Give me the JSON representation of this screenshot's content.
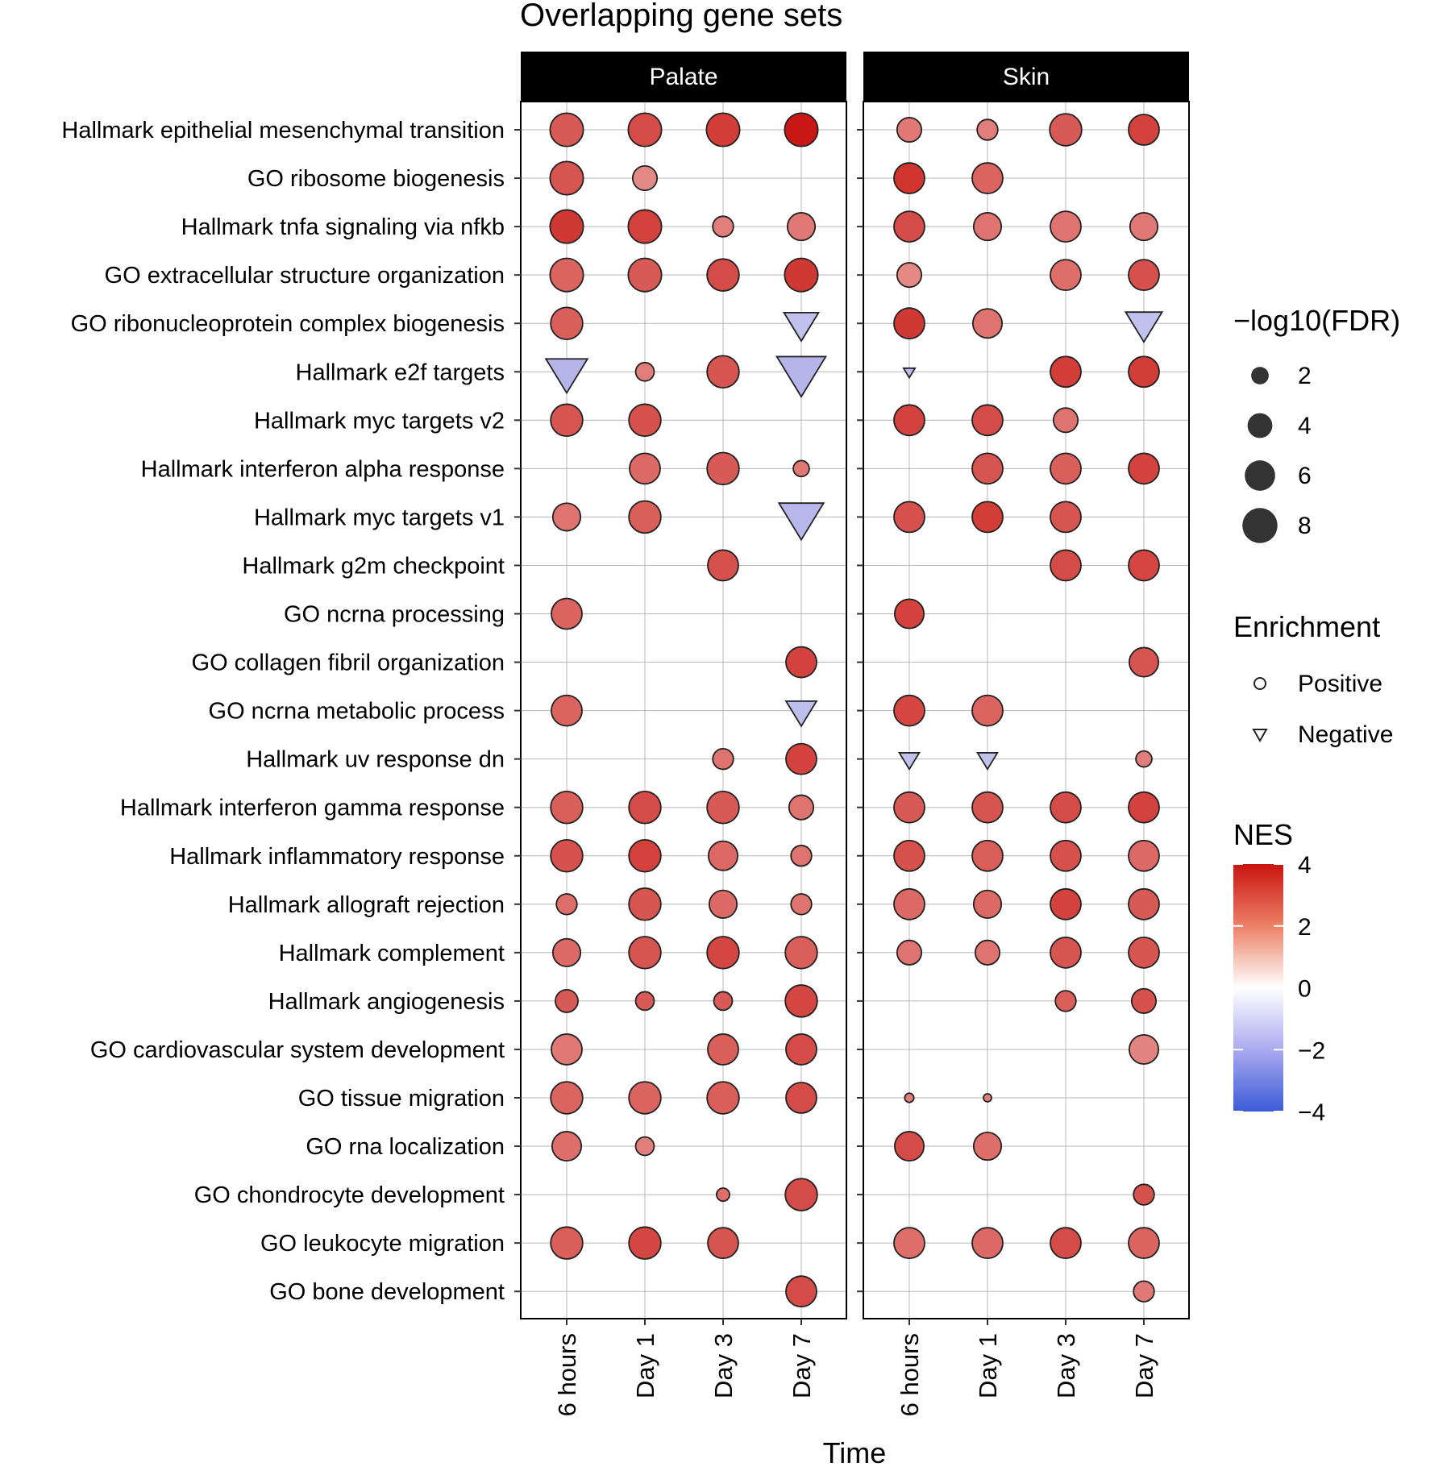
{
  "chart_data": {
    "type": "scatter",
    "title": "Overlapping gene sets",
    "xlabel": "Time",
    "ylabel": "",
    "facets": [
      "Palate",
      "Skin"
    ],
    "time_points": [
      "6 hours",
      "Day 1",
      "Day 3",
      "Day 7"
    ],
    "gene_sets": [
      "Hallmark epithelial mesenchymal transition",
      "GO ribosome biogenesis",
      "Hallmark tnfa signaling via nfkb",
      "GO extracellular structure organization",
      "GO ribonucleoprotein complex biogenesis",
      "Hallmark e2f targets",
      "Hallmark myc targets v2",
      "Hallmark interferon alpha response",
      "Hallmark myc targets v1",
      "Hallmark g2m checkpoint",
      "GO ncrna processing",
      "GO collagen fibril organization",
      "GO ncrna metabolic process",
      "Hallmark uv response dn",
      "Hallmark interferon gamma response",
      "Hallmark inflammatory response",
      "Hallmark allograft rejection",
      "Hallmark complement",
      "Hallmark angiogenesis",
      "GO cardiovascular system development",
      "GO tissue migration",
      "GO rna localization",
      "GO chondrocyte development",
      "GO leukocyte migration",
      "GO bone development"
    ],
    "points_columns": [
      "facet",
      "time",
      "gene_set",
      "nes",
      "neg_log10_fdr"
    ],
    "points": [
      [
        "Palate",
        "6 hours",
        "Hallmark epithelial mesenchymal transition",
        2.5,
        6.5
      ],
      [
        "Palate",
        "Day 1",
        "Hallmark epithelial mesenchymal transition",
        2.8,
        6.5
      ],
      [
        "Palate",
        "Day 3",
        "Hallmark epithelial mesenchymal transition",
        3.1,
        6.5
      ],
      [
        "Palate",
        "Day 7",
        "Hallmark epithelial mesenchymal transition",
        3.9,
        6.5
      ],
      [
        "Palate",
        "6 hours",
        "GO ribosome biogenesis",
        2.6,
        6.5
      ],
      [
        "Palate",
        "Day 1",
        "GO ribosome biogenesis",
        1.6,
        3.5
      ],
      [
        "Palate",
        "6 hours",
        "Hallmark tnfa signaling via nfkb",
        3.2,
        6.5
      ],
      [
        "Palate",
        "Day 1",
        "Hallmark tnfa signaling via nfkb",
        3.0,
        6.5
      ],
      [
        "Palate",
        "Day 3",
        "Hallmark tnfa signaling via nfkb",
        1.8,
        2.5
      ],
      [
        "Palate",
        "Day 7",
        "Hallmark tnfa signaling via nfkb",
        1.9,
        4.5
      ],
      [
        "Palate",
        "6 hours",
        "GO extracellular structure organization",
        2.3,
        6.5
      ],
      [
        "Palate",
        "Day 1",
        "GO extracellular structure organization",
        2.5,
        6.5
      ],
      [
        "Palate",
        "Day 3",
        "GO extracellular structure organization",
        2.8,
        6.0
      ],
      [
        "Palate",
        "Day 7",
        "GO extracellular structure organization",
        3.2,
        6.5
      ],
      [
        "Palate",
        "6 hours",
        "GO ribonucleoprotein complex biogenesis",
        2.4,
        6.0
      ],
      [
        "Palate",
        "Day 7",
        "GO ribonucleoprotein complex biogenesis",
        -1.4,
        4.5
      ],
      [
        "Palate",
        "6 hours",
        "Hallmark e2f targets",
        -1.9,
        6.5
      ],
      [
        "Palate",
        "Day 1",
        "Hallmark e2f targets",
        1.8,
        2.0
      ],
      [
        "Palate",
        "Day 3",
        "Hallmark e2f targets",
        2.6,
        6.0
      ],
      [
        "Palate",
        "Day 7",
        "Hallmark e2f targets",
        -1.9,
        9.0
      ],
      [
        "Palate",
        "6 hours",
        "Hallmark myc targets v2",
        2.6,
        6.0
      ],
      [
        "Palate",
        "Day 1",
        "Hallmark myc targets v2",
        2.7,
        6.0
      ],
      [
        "Palate",
        "Day 1",
        "Hallmark interferon alpha response",
        2.2,
        5.5
      ],
      [
        "Palate",
        "Day 3",
        "Hallmark interferon alpha response",
        2.5,
        6.0
      ],
      [
        "Palate",
        "Day 7",
        "Hallmark interferon alpha response",
        1.9,
        1.5
      ],
      [
        "Palate",
        "6 hours",
        "Hallmark myc targets v1",
        2.0,
        4.5
      ],
      [
        "Palate",
        "Day 1",
        "Hallmark myc targets v1",
        2.4,
        6.0
      ],
      [
        "Palate",
        "Day 7",
        "Hallmark myc targets v1",
        -1.8,
        7.5
      ],
      [
        "Palate",
        "Day 3",
        "Hallmark g2m checkpoint",
        2.7,
        5.5
      ],
      [
        "Palate",
        "6 hours",
        "GO ncrna processing",
        2.3,
        5.5
      ],
      [
        "Palate",
        "Day 7",
        "GO collagen fibril organization",
        3.0,
        5.5
      ],
      [
        "Palate",
        "6 hours",
        "GO ncrna metabolic process",
        2.3,
        5.5
      ],
      [
        "Palate",
        "Day 7",
        "GO ncrna metabolic process",
        -1.5,
        3.5
      ],
      [
        "Palate",
        "Day 3",
        "Hallmark uv response dn",
        2.0,
        2.5
      ],
      [
        "Palate",
        "Day 7",
        "Hallmark uv response dn",
        3.0,
        5.5
      ],
      [
        "Palate",
        "6 hours",
        "Hallmark interferon gamma response",
        2.4,
        6.0
      ],
      [
        "Palate",
        "Day 1",
        "Hallmark interferon gamma response",
        2.8,
        6.0
      ],
      [
        "Palate",
        "Day 3",
        "Hallmark interferon gamma response",
        2.5,
        6.0
      ],
      [
        "Palate",
        "Day 7",
        "Hallmark interferon gamma response",
        2.0,
        3.5
      ],
      [
        "Palate",
        "6 hours",
        "Hallmark inflammatory response",
        2.7,
        6.0
      ],
      [
        "Palate",
        "Day 1",
        "Hallmark inflammatory response",
        3.0,
        6.0
      ],
      [
        "Palate",
        "Day 3",
        "Hallmark inflammatory response",
        2.2,
        5.0
      ],
      [
        "Palate",
        "Day 7",
        "Hallmark inflammatory response",
        2.0,
        2.5
      ],
      [
        "Palate",
        "6 hours",
        "Hallmark allograft rejection",
        2.1,
        2.5
      ],
      [
        "Palate",
        "Day 1",
        "Hallmark allograft rejection",
        2.6,
        6.0
      ],
      [
        "Palate",
        "Day 3",
        "Hallmark allograft rejection",
        2.2,
        4.5
      ],
      [
        "Palate",
        "Day 7",
        "Hallmark allograft rejection",
        2.0,
        2.5
      ],
      [
        "Palate",
        "6 hours",
        "Hallmark complement",
        2.2,
        4.5
      ],
      [
        "Palate",
        "Day 1",
        "Hallmark complement",
        2.6,
        6.0
      ],
      [
        "Palate",
        "Day 3",
        "Hallmark complement",
        2.9,
        6.0
      ],
      [
        "Palate",
        "Day 7",
        "Hallmark complement",
        2.4,
        6.0
      ],
      [
        "Palate",
        "6 hours",
        "Hallmark angiogenesis",
        2.5,
        3.0
      ],
      [
        "Palate",
        "Day 1",
        "Hallmark angiogenesis",
        2.5,
        2.0
      ],
      [
        "Palate",
        "Day 3",
        "Hallmark angiogenesis",
        2.5,
        2.0
      ],
      [
        "Palate",
        "Day 7",
        "Hallmark angiogenesis",
        2.9,
        6.0
      ],
      [
        "Palate",
        "6 hours",
        "GO cardiovascular system development",
        1.9,
        5.5
      ],
      [
        "Palate",
        "Day 3",
        "GO cardiovascular system development",
        2.4,
        5.5
      ],
      [
        "Palate",
        "Day 7",
        "GO cardiovascular system development",
        2.8,
        5.5
      ],
      [
        "Palate",
        "6 hours",
        "GO tissue migration",
        2.3,
        6.0
      ],
      [
        "Palate",
        "Day 1",
        "GO tissue migration",
        2.3,
        6.0
      ],
      [
        "Palate",
        "Day 3",
        "GO tissue migration",
        2.4,
        6.0
      ],
      [
        "Palate",
        "Day 7",
        "GO tissue migration",
        2.8,
        5.5
      ],
      [
        "Palate",
        "6 hours",
        "GO rna localization",
        2.1,
        5.0
      ],
      [
        "Palate",
        "Day 1",
        "GO rna localization",
        1.8,
        2.0
      ],
      [
        "Palate",
        "Day 3",
        "GO chondrocyte development",
        2.1,
        1.0
      ],
      [
        "Palate",
        "Day 7",
        "GO chondrocyte development",
        2.8,
        6.0
      ],
      [
        "Palate",
        "6 hours",
        "GO leukocyte migration",
        2.4,
        6.0
      ],
      [
        "Palate",
        "Day 1",
        "GO leukocyte migration",
        2.9,
        6.0
      ],
      [
        "Palate",
        "Day 3",
        "GO leukocyte migration",
        2.6,
        5.5
      ],
      [
        "Palate",
        "Day 7",
        "GO bone development",
        2.8,
        5.5
      ],
      [
        "Skin",
        "6 hours",
        "Hallmark epithelial mesenchymal transition",
        1.9,
        3.5
      ],
      [
        "Skin",
        "Day 1",
        "Hallmark epithelial mesenchymal transition",
        1.8,
        2.5
      ],
      [
        "Skin",
        "Day 3",
        "Hallmark epithelial mesenchymal transition",
        2.5,
        6.0
      ],
      [
        "Skin",
        "Day 7",
        "Hallmark epithelial mesenchymal transition",
        3.0,
        5.5
      ],
      [
        "Skin",
        "6 hours",
        "GO ribosome biogenesis",
        3.3,
        5.5
      ],
      [
        "Skin",
        "Day 1",
        "GO ribosome biogenesis",
        2.3,
        5.5
      ],
      [
        "Skin",
        "6 hours",
        "Hallmark tnfa signaling via nfkb",
        2.8,
        5.5
      ],
      [
        "Skin",
        "Day 1",
        "Hallmark tnfa signaling via nfkb",
        2.0,
        4.5
      ],
      [
        "Skin",
        "Day 3",
        "Hallmark tnfa signaling via nfkb",
        2.0,
        5.5
      ],
      [
        "Skin",
        "Day 7",
        "Hallmark tnfa signaling via nfkb",
        1.9,
        4.5
      ],
      [
        "Skin",
        "6 hours",
        "GO extracellular structure organization",
        1.6,
        3.5
      ],
      [
        "Skin",
        "Day 3",
        "GO extracellular structure organization",
        2.1,
        5.5
      ],
      [
        "Skin",
        "Day 7",
        "GO extracellular structure organization",
        2.7,
        5.5
      ],
      [
        "Skin",
        "6 hours",
        "GO ribonucleoprotein complex biogenesis",
        3.2,
        5.5
      ],
      [
        "Skin",
        "Day 1",
        "GO ribonucleoprotein complex biogenesis",
        2.0,
        5.0
      ],
      [
        "Skin",
        "Day 7",
        "GO ribonucleoprotein complex biogenesis",
        -1.4,
        5.0
      ],
      [
        "Skin",
        "6 hours",
        "Hallmark e2f targets",
        -1.5,
        0.5
      ],
      [
        "Skin",
        "Day 3",
        "Hallmark e2f targets",
        3.1,
        5.5
      ],
      [
        "Skin",
        "Day 7",
        "Hallmark e2f targets",
        3.1,
        5.5
      ],
      [
        "Skin",
        "6 hours",
        "Hallmark myc targets v2",
        3.0,
        5.5
      ],
      [
        "Skin",
        "Day 1",
        "Hallmark myc targets v2",
        2.8,
        5.5
      ],
      [
        "Skin",
        "Day 3",
        "Hallmark myc targets v2",
        2.0,
        3.5
      ],
      [
        "Skin",
        "Day 1",
        "Hallmark interferon alpha response",
        2.6,
        5.5
      ],
      [
        "Skin",
        "Day 3",
        "Hallmark interferon alpha response",
        2.4,
        5.5
      ],
      [
        "Skin",
        "Day 7",
        "Hallmark interferon alpha response",
        3.0,
        5.5
      ],
      [
        "Skin",
        "6 hours",
        "Hallmark myc targets v1",
        2.7,
        5.5
      ],
      [
        "Skin",
        "Day 1",
        "Hallmark myc targets v1",
        3.1,
        5.5
      ],
      [
        "Skin",
        "Day 3",
        "Hallmark myc targets v1",
        2.6,
        5.5
      ],
      [
        "Skin",
        "Day 3",
        "Hallmark g2m checkpoint",
        2.8,
        5.5
      ],
      [
        "Skin",
        "Day 7",
        "Hallmark g2m checkpoint",
        2.9,
        5.5
      ],
      [
        "Skin",
        "6 hours",
        "GO ncrna processing",
        3.0,
        5.0
      ],
      [
        "Skin",
        "Day 7",
        "GO collagen fibril organization",
        2.6,
        5.0
      ],
      [
        "Skin",
        "6 hours",
        "GO ncrna metabolic process",
        2.9,
        5.5
      ],
      [
        "Skin",
        "Day 1",
        "GO ncrna metabolic process",
        2.3,
        5.5
      ],
      [
        "Skin",
        "6 hours",
        "Hallmark uv response dn",
        -1.4,
        1.5
      ],
      [
        "Skin",
        "Day 1",
        "Hallmark uv response dn",
        -1.4,
        1.5
      ],
      [
        "Skin",
        "Day 7",
        "Hallmark uv response dn",
        1.8,
        1.5
      ],
      [
        "Skin",
        "6 hours",
        "Hallmark interferon gamma response",
        2.5,
        5.5
      ],
      [
        "Skin",
        "Day 1",
        "Hallmark interferon gamma response",
        2.6,
        5.5
      ],
      [
        "Skin",
        "Day 3",
        "Hallmark interferon gamma response",
        2.8,
        5.5
      ],
      [
        "Skin",
        "Day 7",
        "Hallmark interferon gamma response",
        3.0,
        5.5
      ],
      [
        "Skin",
        "6 hours",
        "Hallmark inflammatory response",
        2.7,
        5.5
      ],
      [
        "Skin",
        "Day 1",
        "Hallmark inflammatory response",
        2.4,
        5.5
      ],
      [
        "Skin",
        "Day 3",
        "Hallmark inflammatory response",
        2.7,
        5.5
      ],
      [
        "Skin",
        "Day 7",
        "Hallmark inflammatory response",
        2.2,
        5.5
      ],
      [
        "Skin",
        "6 hours",
        "Hallmark allograft rejection",
        2.2,
        5.5
      ],
      [
        "Skin",
        "Day 1",
        "Hallmark allograft rejection",
        2.2,
        4.5
      ],
      [
        "Skin",
        "Day 3",
        "Hallmark allograft rejection",
        3.0,
        5.5
      ],
      [
        "Skin",
        "Day 7",
        "Hallmark allograft rejection",
        2.5,
        5.5
      ],
      [
        "Skin",
        "6 hours",
        "Hallmark complement",
        2.0,
        3.5
      ],
      [
        "Skin",
        "Day 1",
        "Hallmark complement",
        2.0,
        3.5
      ],
      [
        "Skin",
        "Day 3",
        "Hallmark complement",
        2.6,
        5.5
      ],
      [
        "Skin",
        "Day 7",
        "Hallmark complement",
        2.6,
        5.5
      ],
      [
        "Skin",
        "Day 3",
        "Hallmark angiogenesis",
        2.4,
        2.5
      ],
      [
        "Skin",
        "Day 7",
        "Hallmark angiogenesis",
        2.7,
        3.5
      ],
      [
        "Skin",
        "Day 7",
        "GO cardiovascular system development",
        1.7,
        5.0
      ],
      [
        "Skin",
        "6 hours",
        "GO tissue migration",
        1.8,
        0.5
      ],
      [
        "Skin",
        "Day 1",
        "GO tissue migration",
        1.8,
        0.2
      ],
      [
        "Skin",
        "6 hours",
        "GO rna localization",
        2.8,
        5.0
      ],
      [
        "Skin",
        "Day 1",
        "GO rna localization",
        2.1,
        4.5
      ],
      [
        "Skin",
        "Day 7",
        "GO chondrocyte development",
        2.7,
        2.5
      ],
      [
        "Skin",
        "6 hours",
        "GO leukocyte migration",
        2.1,
        5.5
      ],
      [
        "Skin",
        "Day 1",
        "GO leukocyte migration",
        2.2,
        5.5
      ],
      [
        "Skin",
        "Day 3",
        "GO leukocyte migration",
        2.8,
        5.5
      ],
      [
        "Skin",
        "Day 7",
        "GO leukocyte migration",
        2.3,
        5.5
      ],
      [
        "Skin",
        "Day 7",
        "GO bone development",
        1.9,
        2.5
      ]
    ],
    "size_legend": {
      "title": "−log10(FDR)",
      "breaks": [
        2,
        4,
        6,
        8
      ],
      "labels": [
        "2",
        "4",
        "6",
        "8"
      ]
    },
    "shape_legend": {
      "title": "Enrichment",
      "items": [
        {
          "label": "Positive",
          "shape": "circle"
        },
        {
          "label": "Negative",
          "shape": "triangle-down"
        }
      ]
    },
    "color_legend": {
      "title": "NES",
      "range": [
        -4,
        4
      ],
      "breaks": [
        4,
        2,
        0,
        -2,
        -4
      ],
      "labels": [
        "4",
        "2",
        "0",
        "−2",
        "−4"
      ],
      "colors": {
        "low": "#3b5bd6",
        "mid": "#ffffff",
        "high": "#c8140e"
      }
    },
    "grid": true,
    "legend_position": "right"
  }
}
